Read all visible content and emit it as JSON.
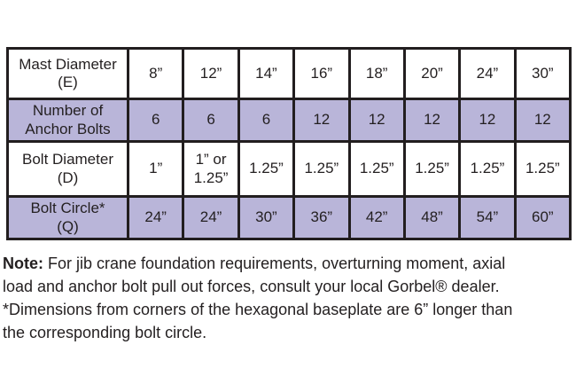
{
  "colors": {
    "shaded_row": "#b9b5d9",
    "border": "#221e1f",
    "text": "#231f20",
    "background": "#ffffff"
  },
  "table": {
    "rows": [
      {
        "label": "Mast Diameter\n(E)",
        "shaded": false,
        "values": [
          "8”",
          "12”",
          "14”",
          "16”",
          "18”",
          "20”",
          "24”",
          "30”"
        ]
      },
      {
        "label": "Number of\nAnchor Bolts",
        "shaded": true,
        "values": [
          "6",
          "6",
          "6",
          "12",
          "12",
          "12",
          "12",
          "12"
        ]
      },
      {
        "label": "Bolt Diameter\n(D)",
        "shaded": false,
        "values": [
          "1”",
          "1” or\n1.25”",
          "1.25”",
          "1.25”",
          "1.25”",
          "1.25”",
          "1.25”",
          "1.25”"
        ]
      },
      {
        "label": "Bolt Circle*\n(Q)",
        "shaded": true,
        "values": [
          "24”",
          "24”",
          "30”",
          "36”",
          "42”",
          "48”",
          "54”",
          "60”"
        ]
      }
    ]
  },
  "note": {
    "label": "Note:",
    "line1": " For jib crane foundation requirements, overturning moment, axial",
    "line2": "load and anchor bolt pull out forces, consult your local Gorbel® dealer.",
    "line3": "*Dimensions from corners of the hexagonal baseplate are 6” longer than",
    "line4": "the corresponding bolt circle."
  }
}
